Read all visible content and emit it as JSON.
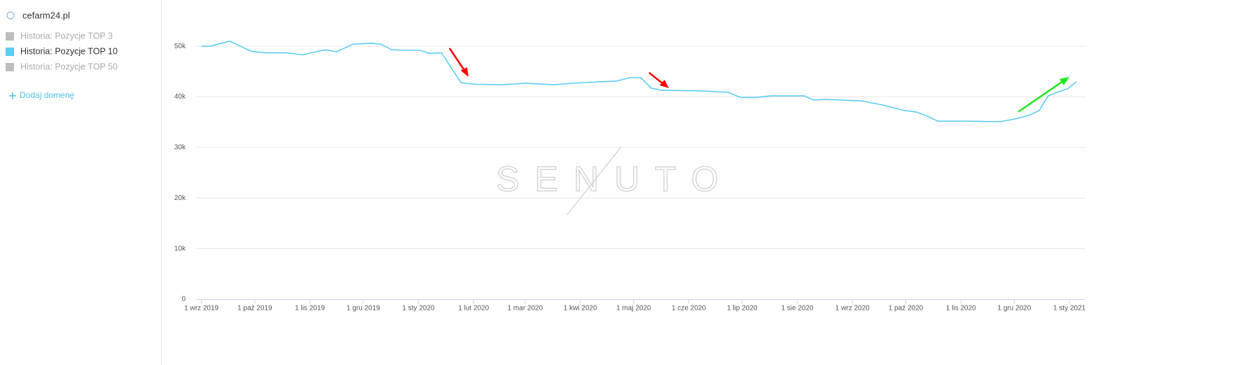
{
  "sidebar": {
    "domain": "cefarm24.pl",
    "legend": [
      {
        "name": "Historia: Pozycje TOP 3",
        "color": "#bdbdbd"
      },
      {
        "name": "Historia: Pozycje TOP 50",
        "color": "#bdbdbd"
      }
    ],
    "add_button": "Dodaj domenę"
  },
  "chart_data": {
    "type": "line",
    "watermark": "SENUTO",
    "x": [
      "2019-09-01",
      "2019-09-06",
      "2019-09-10",
      "2019-09-17",
      "2019-09-23",
      "2019-09-29",
      "2019-10-07",
      "2019-10-19",
      "2019-10-28",
      "2019-11-04",
      "2019-11-10",
      "2019-11-16",
      "2019-11-25",
      "2019-12-05",
      "2019-12-11",
      "2019-12-17",
      "2019-12-25",
      "2020-01-02",
      "2020-01-07",
      "2020-01-14",
      "2020-01-19",
      "2020-01-25",
      "2020-02-02",
      "2020-02-18",
      "2020-03-01",
      "2020-03-17",
      "2020-03-28",
      "2020-04-13",
      "2020-04-21",
      "2020-04-29",
      "2020-05-05",
      "2020-05-11",
      "2020-05-17",
      "2020-06-07",
      "2020-06-23",
      "2020-06-30",
      "2020-07-09",
      "2020-07-17",
      "2020-08-05",
      "2020-08-10",
      "2020-08-17",
      "2020-09-06",
      "2020-09-18",
      "2020-09-29",
      "2020-10-07",
      "2020-10-13",
      "2020-10-19",
      "2020-11-04",
      "2020-11-23",
      "2020-12-01",
      "2020-12-09",
      "2020-12-15",
      "2020-12-20",
      "2020-12-25",
      "2020-12-31",
      "2021-01-05"
    ],
    "series": [
      {
        "name": "Historia: Pozycje TOP 10",
        "color": "#5ccdf5",
        "values": [
          50000,
          50000,
          50400,
          51000,
          50000,
          49000,
          48700,
          48700,
          48300,
          48900,
          49300,
          48900,
          50400,
          50600,
          50400,
          49300,
          49200,
          49200,
          48600,
          48700,
          46000,
          42800,
          42500,
          42400,
          42700,
          42400,
          42700,
          43000,
          43100,
          43800,
          43800,
          41700,
          41300,
          41200,
          40900,
          39900,
          39900,
          40200,
          40200,
          39400,
          39500,
          39200,
          38400,
          37400,
          37000,
          36200,
          35200,
          35200,
          35100,
          35600,
          36300,
          37300,
          40200,
          40900,
          41600,
          43000
        ]
      }
    ],
    "xlim": [
      "2019-08-29",
      "2021-01-10"
    ],
    "xticks": [
      {
        "value": "2019-09-01",
        "label": "1 wrz 2019"
      },
      {
        "value": "2019-10-01",
        "label": "1 paź 2019"
      },
      {
        "value": "2019-11-01",
        "label": "1 lis 2019"
      },
      {
        "value": "2019-12-01",
        "label": "1 gru 2019"
      },
      {
        "value": "2020-01-01",
        "label": "1 sty 2020"
      },
      {
        "value": "2020-02-01",
        "label": "1 lut 2020"
      },
      {
        "value": "2020-03-01",
        "label": "1 mar 2020"
      },
      {
        "value": "2020-04-01",
        "label": "1 kwi 2020"
      },
      {
        "value": "2020-05-01",
        "label": "1 maj 2020"
      },
      {
        "value": "2020-06-01",
        "label": "1 cze 2020"
      },
      {
        "value": "2020-07-01",
        "label": "1 lip 2020"
      },
      {
        "value": "2020-08-01",
        "label": "1 sie 2020"
      },
      {
        "value": "2020-09-01",
        "label": "1 wrz 2020"
      },
      {
        "value": "2020-10-01",
        "label": "1 paź 2020"
      },
      {
        "value": "2020-11-01",
        "label": "1 lis 2020"
      },
      {
        "value": "2020-12-01",
        "label": "1 gru 2020"
      },
      {
        "value": "2021-01-01",
        "label": "1 sty 2021"
      }
    ],
    "ylim": [
      0,
      55000
    ],
    "yticks": [
      0,
      {
        "value": 10000,
        "label": "10k"
      },
      {
        "value": 20000,
        "label": "20k"
      },
      {
        "value": 30000,
        "label": "30k"
      },
      {
        "value": 40000,
        "label": "40k"
      },
      {
        "value": 50000,
        "label": "50k"
      }
    ],
    "grid": true
  }
}
